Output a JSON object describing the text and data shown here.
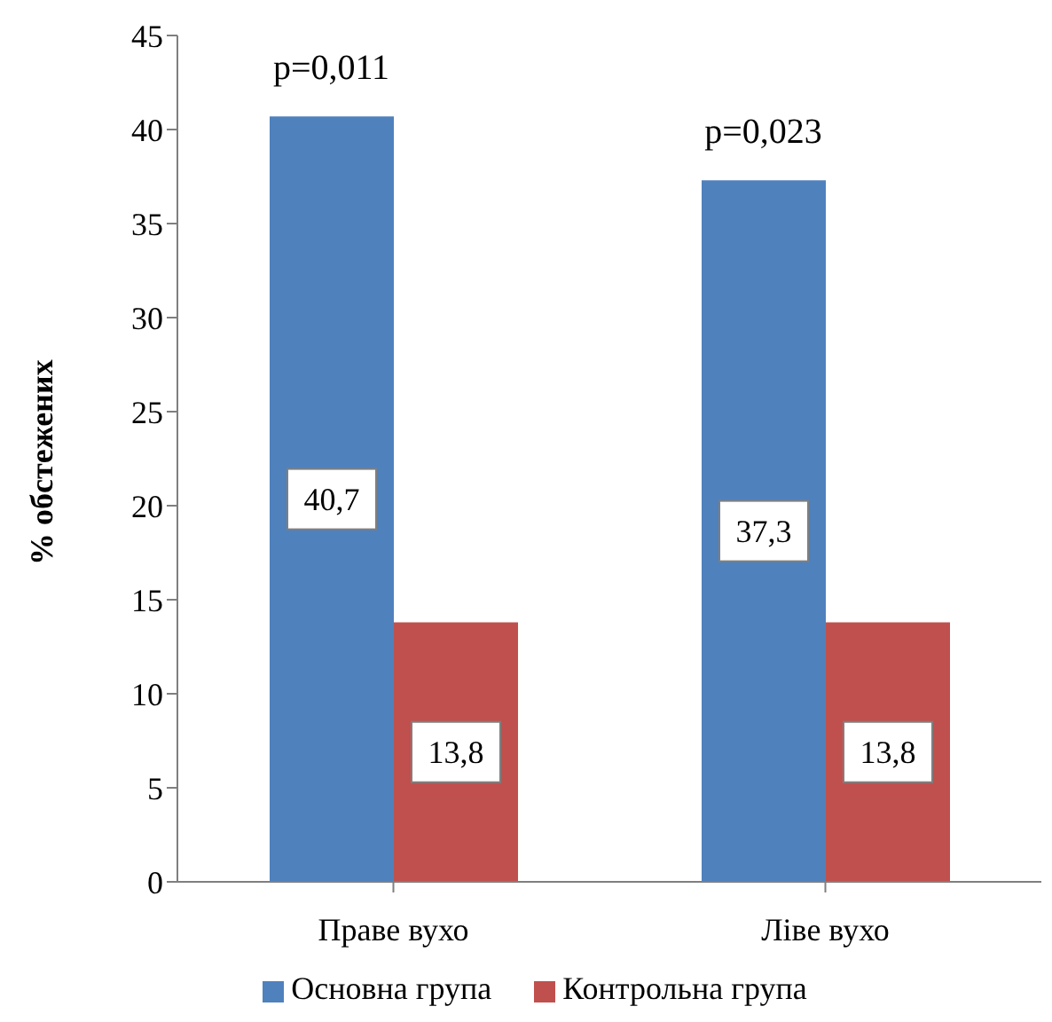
{
  "chart_data": {
    "type": "bar",
    "ylabel": "% обстежених",
    "categories": [
      "Праве вухо",
      "Ліве вухо"
    ],
    "series": [
      {
        "name": "Основна група",
        "color": "#4f81bd",
        "values": [
          40.7,
          37.3
        ],
        "value_labels": [
          "40,7",
          "37,3"
        ]
      },
      {
        "name": "Контрольна група",
        "color": "#c0504d",
        "values": [
          13.8,
          13.8
        ],
        "value_labels": [
          "13,8",
          "13,8"
        ]
      }
    ],
    "ylim": [
      0,
      45
    ],
    "yticks": [
      0,
      5,
      10,
      15,
      20,
      25,
      30,
      35,
      40,
      45
    ],
    "grid": false,
    "legend": "bottom",
    "annotations": [
      "p=0,011",
      "p=0,023"
    ]
  }
}
